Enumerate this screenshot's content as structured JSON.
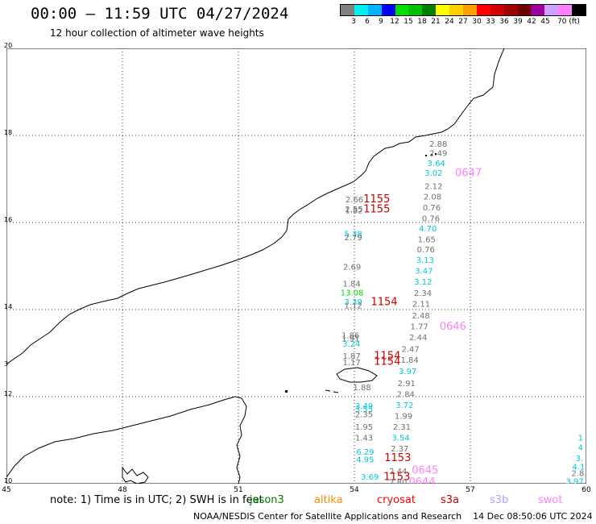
{
  "header": {
    "title": "00:00 – 11:59 UTC 04/27/2024",
    "subtitle": "12 hour collection of altimeter wave heights"
  },
  "colorbar": {
    "colors": [
      "#808080",
      "#00f0f0",
      "#00b4ff",
      "#0000ff",
      "#00e000",
      "#00c000",
      "#008000",
      "#ffff00",
      "#ffd000",
      "#ffa000",
      "#ff0000",
      "#d00000",
      "#a00000",
      "#700000",
      "#a000a0",
      "#d0a0ff",
      "#ff80ff",
      "#000000"
    ],
    "labels": [
      "3",
      "6",
      "9",
      "12",
      "15",
      "18",
      "21",
      "24",
      "27",
      "30",
      "33",
      "36",
      "39",
      "42",
      "45",
      "70 (ft)"
    ]
  },
  "axes": {
    "y_labels": [
      "20",
      "18",
      "16",
      "14",
      "12",
      "10"
    ],
    "x_labels": [
      "45",
      "48",
      "51",
      "54",
      "57",
      "60"
    ],
    "edge_marker": "3"
  },
  "legend": {
    "note": "note: 1) Time is in UTC; 2) SWH is in feet",
    "missions": [
      {
        "name": "jason3",
        "color": "#008000"
      },
      {
        "name": "altika",
        "color": "#ff8c00"
      },
      {
        "name": "cryosat",
        "color": "#ff0000"
      },
      {
        "name": "s3a",
        "color": "#c00000"
      },
      {
        "name": "s3b",
        "color": "#b0a0ff"
      },
      {
        "name": "swot",
        "color": "#ff80ff"
      }
    ]
  },
  "footer": {
    "credit": "NOAA/NESDIS Center for Satellite Applications and Research",
    "timestamp": "14 Dec 08:50:06 UTC 2024"
  },
  "observations": [
    {
      "text": "2.66",
      "lon": 54.0,
      "lat": 16.52,
      "color": "#707070"
    },
    {
      "text": "2.55",
      "lon": 53.99,
      "lat": 16.3,
      "color": "#707070"
    },
    {
      "text": "1.82",
      "lon": 53.99,
      "lat": 16.27,
      "color": "#707070"
    },
    {
      "text": "1155",
      "lon": 54.58,
      "lat": 16.53,
      "color": "#cc0000",
      "big": true
    },
    {
      "text": "1155",
      "lon": 54.58,
      "lat": 16.3,
      "color": "#cc0000",
      "big": true
    },
    {
      "text": "5.38",
      "lon": 53.97,
      "lat": 15.73,
      "color": "#00c8d8"
    },
    {
      "text": "2.79",
      "lon": 53.97,
      "lat": 15.65,
      "color": "#707070"
    },
    {
      "text": "2.69",
      "lon": 53.94,
      "lat": 14.97,
      "color": "#707070"
    },
    {
      "text": "1.84",
      "lon": 53.93,
      "lat": 14.58,
      "color": "#707070"
    },
    {
      "text": "13.08",
      "lon": 53.94,
      "lat": 14.38,
      "color": "#00dd00"
    },
    {
      "text": "3.39",
      "lon": 53.97,
      "lat": 14.17,
      "color": "#00c8d8"
    },
    {
      "text": "1.12",
      "lon": 53.97,
      "lat": 14.08,
      "color": "#707070"
    },
    {
      "text": "1154",
      "lon": 54.77,
      "lat": 14.17,
      "color": "#cc0000",
      "big": true
    },
    {
      "text": "1.86",
      "lon": 53.9,
      "lat": 13.4,
      "color": "#707070"
    },
    {
      "text": "1.91",
      "lon": 53.9,
      "lat": 13.32,
      "color": "#707070"
    },
    {
      "text": "3.24",
      "lon": 53.92,
      "lat": 13.2,
      "color": "#00c8d8"
    },
    {
      "text": "1.87",
      "lon": 53.93,
      "lat": 12.93,
      "color": "#707070"
    },
    {
      "text": "1.17",
      "lon": 53.93,
      "lat": 12.78,
      "color": "#707070"
    },
    {
      "text": "1154",
      "lon": 54.85,
      "lat": 12.93,
      "color": "#cc0000",
      "big": true
    },
    {
      "text": "1154",
      "lon": 54.85,
      "lat": 12.8,
      "color": "#cc0000",
      "big": true
    },
    {
      "text": "1.88",
      "lon": 54.2,
      "lat": 12.2,
      "color": "#707070"
    },
    {
      "text": "2.88",
      "lon": 56.17,
      "lat": 17.8,
      "color": "#707070"
    },
    {
      "text": "2.49",
      "lon": 56.17,
      "lat": 17.58,
      "color": "#707070"
    },
    {
      "text": "3.64",
      "lon": 56.12,
      "lat": 17.35,
      "color": "#00c8d8"
    },
    {
      "text": "3.02",
      "lon": 56.05,
      "lat": 17.13,
      "color": "#00c8d8"
    },
    {
      "text": "0647",
      "lon": 56.95,
      "lat": 17.13,
      "color": "#ff80ff",
      "big": true
    },
    {
      "text": "2.12",
      "lon": 56.05,
      "lat": 16.82,
      "color": "#707070"
    },
    {
      "text": "2.08",
      "lon": 56.02,
      "lat": 16.58,
      "color": "#707070"
    },
    {
      "text": "0.76",
      "lon": 56.0,
      "lat": 16.33,
      "color": "#707070"
    },
    {
      "text": "0.76",
      "lon": 55.98,
      "lat": 16.08,
      "color": "#707070"
    },
    {
      "text": "4.70",
      "lon": 55.9,
      "lat": 15.85,
      "color": "#00c8d8"
    },
    {
      "text": "1.65",
      "lon": 55.87,
      "lat": 15.6,
      "color": "#707070"
    },
    {
      "text": "0.76",
      "lon": 55.85,
      "lat": 15.37,
      "color": "#707070"
    },
    {
      "text": "3.13",
      "lon": 55.83,
      "lat": 15.13,
      "color": "#00c8d8"
    },
    {
      "text": "3.47",
      "lon": 55.8,
      "lat": 14.88,
      "color": "#00c8d8"
    },
    {
      "text": "3.12",
      "lon": 55.78,
      "lat": 14.63,
      "color": "#00c8d8"
    },
    {
      "text": "2.34",
      "lon": 55.77,
      "lat": 14.37,
      "color": "#707070"
    },
    {
      "text": "2.11",
      "lon": 55.73,
      "lat": 14.12,
      "color": "#707070"
    },
    {
      "text": "2.48",
      "lon": 55.72,
      "lat": 13.85,
      "color": "#707070"
    },
    {
      "text": "1.77",
      "lon": 55.68,
      "lat": 13.6,
      "color": "#707070"
    },
    {
      "text": "0646",
      "lon": 56.55,
      "lat": 13.6,
      "color": "#ff80ff",
      "big": true
    },
    {
      "text": "2.44",
      "lon": 55.65,
      "lat": 13.35,
      "color": "#707070"
    },
    {
      "text": "2.47",
      "lon": 55.45,
      "lat": 13.08,
      "color": "#707070"
    },
    {
      "text": "1.84",
      "lon": 55.43,
      "lat": 12.83,
      "color": "#707070"
    },
    {
      "text": "3.97",
      "lon": 55.38,
      "lat": 12.57,
      "color": "#00c8d8"
    },
    {
      "text": "2.91",
      "lon": 55.35,
      "lat": 12.3,
      "color": "#707070"
    },
    {
      "text": "2.84",
      "lon": 55.33,
      "lat": 12.05,
      "color": "#707070"
    },
    {
      "text": "3.72",
      "lon": 55.3,
      "lat": 11.8,
      "color": "#00c8d8"
    },
    {
      "text": "1.99",
      "lon": 55.27,
      "lat": 11.55,
      "color": "#707070"
    },
    {
      "text": "2.31",
      "lon": 55.23,
      "lat": 11.3,
      "color": "#707070"
    },
    {
      "text": "3.54",
      "lon": 55.2,
      "lat": 11.05,
      "color": "#00c8d8"
    },
    {
      "text": "2.37",
      "lon": 55.17,
      "lat": 10.8,
      "color": "#707070"
    },
    {
      "text": "1153",
      "lon": 55.12,
      "lat": 10.58,
      "color": "#cc0000",
      "big": true
    },
    {
      "text": "2.44",
      "lon": 55.13,
      "lat": 10.28,
      "color": "#707070"
    },
    {
      "text": "2.80",
      "lon": 55.13,
      "lat": 10.03,
      "color": "#707070"
    },
    {
      "text": "1153",
      "lon": 55.1,
      "lat": 10.15,
      "color": "#cc0000",
      "big": true
    },
    {
      "text": "0645",
      "lon": 55.83,
      "lat": 10.3,
      "color": "#ff80ff",
      "big": true
    },
    {
      "text": "0644",
      "lon": 55.75,
      "lat": 10.03,
      "color": "#ff80ff",
      "big": true
    },
    {
      "text": "3.49",
      "lon": 54.25,
      "lat": 11.78,
      "color": "#00c8d8"
    },
    {
      "text": "3.55",
      "lon": 54.25,
      "lat": 11.7,
      "color": "#00c8d8"
    },
    {
      "text": "2.35",
      "lon": 54.25,
      "lat": 11.58,
      "color": "#707070"
    },
    {
      "text": "1.95",
      "lon": 54.25,
      "lat": 11.3,
      "color": "#707070"
    },
    {
      "text": "1.43",
      "lon": 54.25,
      "lat": 11.05,
      "color": "#707070"
    },
    {
      "text": "6.29",
      "lon": 54.28,
      "lat": 10.72,
      "color": "#00c8d8"
    },
    {
      "text": "4.95",
      "lon": 54.28,
      "lat": 10.55,
      "color": "#00c8d8"
    },
    {
      "text": "3.69",
      "lon": 54.4,
      "lat": 10.15,
      "color": "#00c8d8"
    },
    {
      "text": "1",
      "lon": 59.85,
      "lat": 11.05,
      "color": "#00c8d8"
    },
    {
      "text": "4",
      "lon": 59.85,
      "lat": 10.82,
      "color": "#00c8d8"
    },
    {
      "text": "3.",
      "lon": 59.82,
      "lat": 10.57,
      "color": "#00c8d8"
    },
    {
      "text": "4.1",
      "lon": 59.8,
      "lat": 10.38,
      "color": "#00c8d8"
    },
    {
      "text": "2.8",
      "lon": 59.78,
      "lat": 10.23,
      "color": "#707070"
    },
    {
      "text": "3.97",
      "lon": 59.7,
      "lat": 10.05,
      "color": "#00c8d8"
    }
  ]
}
